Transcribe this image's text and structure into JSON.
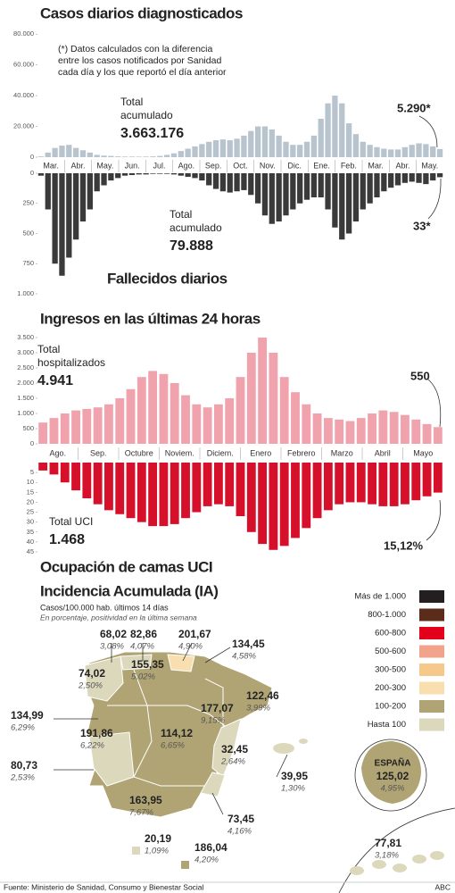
{
  "chart_data": [
    {
      "type": "bar",
      "title": "Casos diarios diagnosticados",
      "note": [
        "(*) Datos calculados con la diferencia",
        "entre los casos notificados por Sanidad",
        "cada día y los que reportó el día anterior"
      ],
      "total_label": [
        "Total",
        "acumulado"
      ],
      "total": "3.663.176",
      "x_labels": [
        "Mar.",
        "Abr.",
        "May.",
        "Jun.",
        "Jul.",
        "Ago.",
        "Sep.",
        "Oct.",
        "Nov.",
        "Dic.",
        "Ene.",
        "Feb.",
        "Mar.",
        "Abr.",
        "May."
      ],
      "values": [
        500,
        3000,
        6000,
        7500,
        8000,
        6000,
        4500,
        3000,
        1500,
        1000,
        800,
        500,
        400,
        400,
        350,
        400,
        500,
        800,
        1500,
        2500,
        4000,
        5500,
        7000,
        8500,
        10000,
        11000,
        11500,
        11000,
        12000,
        14000,
        17000,
        20000,
        20000,
        18000,
        14000,
        10000,
        8000,
        8000,
        10000,
        14000,
        25000,
        35000,
        40000,
        35000,
        22000,
        15000,
        10000,
        8000,
        6500,
        5500,
        5000,
        5000,
        6500,
        8000,
        9000,
        8500,
        7000,
        5290
      ],
      "value_labels": [
        null,
        null,
        null,
        null,
        null,
        null,
        null,
        null,
        null,
        null,
        null,
        null,
        null,
        null,
        null,
        null,
        null,
        null,
        null,
        null,
        null,
        null,
        null,
        null,
        null,
        null,
        null,
        null,
        null,
        null,
        null,
        null,
        null,
        null,
        null,
        null,
        null,
        null,
        null,
        null,
        null,
        null,
        null,
        null,
        null,
        null,
        null,
        null,
        null,
        null,
        null,
        null,
        null,
        null,
        null,
        null,
        null,
        "5.290*"
      ],
      "color": "#b7c3cd",
      "ylim": [
        0,
        90000
      ],
      "yticks": [
        0,
        {
          "value": 20000,
          "label": "20.000"
        },
        {
          "value": 40000,
          "label": "40.000"
        },
        {
          "value": 60000,
          "label": "60.000"
        },
        {
          "value": 80000,
          "label": "80.000"
        }
      ]
    },
    {
      "type": "bar",
      "title": "Fallecidos diarios",
      "y_inverted": true,
      "total_label": [
        "Total",
        "acumulado"
      ],
      "total": "79.888",
      "values": [
        20,
        300,
        750,
        850,
        700,
        550,
        400,
        300,
        150,
        100,
        60,
        40,
        20,
        15,
        10,
        10,
        5,
        5,
        5,
        10,
        20,
        30,
        40,
        60,
        100,
        130,
        150,
        160,
        150,
        140,
        180,
        250,
        350,
        420,
        400,
        350,
        300,
        250,
        220,
        200,
        200,
        300,
        450,
        550,
        500,
        400,
        300,
        250,
        200,
        150,
        120,
        100,
        80,
        70,
        80,
        90,
        60,
        33
      ],
      "value_labels": [
        null,
        null,
        null,
        null,
        null,
        null,
        null,
        null,
        null,
        null,
        null,
        null,
        null,
        null,
        null,
        null,
        null,
        null,
        null,
        null,
        null,
        null,
        null,
        null,
        null,
        null,
        null,
        null,
        null,
        null,
        null,
        null,
        null,
        null,
        null,
        null,
        null,
        null,
        null,
        null,
        null,
        null,
        null,
        null,
        null,
        null,
        null,
        null,
        null,
        null,
        null,
        null,
        null,
        null,
        null,
        null,
        null,
        "33*"
      ],
      "color": "#3a3a3a",
      "ylim": [
        0,
        1000
      ],
      "yticks": [
        0,
        250,
        500,
        750,
        {
          "value": 1000,
          "label": "1.000"
        }
      ]
    },
    {
      "type": "bar",
      "title": "Ingresos en las últimas 24 horas",
      "total_label": [
        "Total",
        "hospitalizados"
      ],
      "total": "4.941",
      "x_labels": [
        "Ago.",
        "Sep.",
        "Octubre",
        "Noviem.",
        "Diciem.",
        "Enero",
        "Febrero",
        "Marzo",
        "Abril",
        "Mayo"
      ],
      "values": [
        700,
        850,
        1000,
        1100,
        1150,
        1200,
        1300,
        1500,
        1800,
        2200,
        2400,
        2300,
        2000,
        1600,
        1300,
        1200,
        1300,
        1500,
        2200,
        3000,
        3500,
        3000,
        2200,
        1700,
        1300,
        1000,
        850,
        800,
        750,
        850,
        1000,
        1100,
        1050,
        950,
        800,
        650,
        550
      ],
      "color": "#f0a3ad",
      "ylim": [
        0,
        3750
      ],
      "yticks": [
        0,
        500,
        {
          "value": 1000,
          "label": "1.000"
        },
        {
          "value": 1500,
          "label": "1.500"
        },
        {
          "value": 2000,
          "label": "2.000"
        },
        {
          "value": 2500,
          "label": "2.500"
        },
        {
          "value": 3000,
          "label": "3.000"
        },
        {
          "value": 3500,
          "label": "3.500"
        }
      ]
    },
    {
      "type": "bar",
      "title": "Ocupación de camas UCI",
      "y_inverted": true,
      "total_label": [
        "Total UCI"
      ],
      "total": "1.468",
      "values": [
        4,
        6,
        10,
        14,
        18,
        21,
        24,
        26,
        28,
        30,
        32,
        32,
        31,
        28,
        25,
        22,
        21,
        22,
        27,
        35,
        41,
        44,
        42,
        38,
        33,
        28,
        24,
        21,
        20,
        20,
        21,
        22,
        22,
        21,
        19,
        17,
        15.12
      ],
      "value_labels": [
        null,
        null,
        null,
        null,
        null,
        null,
        null,
        null,
        null,
        null,
        null,
        null,
        null,
        null,
        null,
        null,
        null,
        null,
        null,
        null,
        null,
        null,
        null,
        null,
        null,
        null,
        null,
        null,
        null,
        null,
        null,
        null,
        null,
        null,
        null,
        null,
        "15,12%"
      ],
      "color": "#d6102b",
      "ylim": [
        0,
        45
      ],
      "yticks": [
        5,
        10,
        15,
        20,
        25,
        30,
        35,
        40,
        45
      ]
    }
  ],
  "map": {
    "title": "Incidencia Acumulada (IA)",
    "subtitle": "Casos/100.000 hab. últimos 14 días",
    "note": "En porcentaje, positividad en la última semana",
    "legend": [
      {
        "label": "Más de 1.000",
        "color": "#231f20"
      },
      {
        "label": "800-1.000",
        "color": "#5b2c1a"
      },
      {
        "label": "600-800",
        "color": "#e3001b"
      },
      {
        "label": "500-600",
        "color": "#f2a38c"
      },
      {
        "label": "300-500",
        "color": "#f6c88a"
      },
      {
        "label": "200-300",
        "color": "#f9deb0"
      },
      {
        "label": "100-200",
        "color": "#b0a474"
      },
      {
        "label": "Hasta 100",
        "color": "#dcd8bb"
      }
    ],
    "regions": [
      {
        "value": "68,02",
        "positivity": "3,08%",
        "color": "#dcd8bb"
      },
      {
        "value": "82,86",
        "positivity": "4,07%",
        "color": "#dcd8bb"
      },
      {
        "value": "201,67",
        "positivity": "4,90%",
        "color": "#f9deb0"
      },
      {
        "value": "134,45",
        "positivity": "4,58%",
        "color": "#b0a474"
      },
      {
        "value": "74,02",
        "positivity": "2,50%",
        "color": "#dcd8bb"
      },
      {
        "value": "155,35",
        "positivity": "5,02%",
        "color": "#b0a474"
      },
      {
        "value": "122,46",
        "positivity": "3,99%",
        "color": "#b0a474"
      },
      {
        "value": "177,07",
        "positivity": "9,15%",
        "color": "#b0a474"
      },
      {
        "value": "134,99",
        "positivity": "6,29%",
        "color": "#b0a474"
      },
      {
        "value": "191,86",
        "positivity": "6,22%",
        "color": "#b0a474"
      },
      {
        "value": "114,12",
        "positivity": "6,65%",
        "color": "#b0a474"
      },
      {
        "value": "32,45",
        "positivity": "2,64%",
        "color": "#dcd8bb"
      },
      {
        "value": "80,73",
        "positivity": "2,53%",
        "color": "#dcd8bb"
      },
      {
        "value": "39,95",
        "positivity": "1,30%",
        "color": "#dcd8bb"
      },
      {
        "value": "163,95",
        "positivity": "7,67%",
        "color": "#b0a474"
      },
      {
        "value": "73,45",
        "positivity": "4,16%",
        "color": "#dcd8bb"
      },
      {
        "value": "20,19",
        "positivity": "1,09%",
        "color": "#dcd8bb"
      },
      {
        "value": "186,04",
        "positivity": "4,20%",
        "color": "#b0a474"
      },
      {
        "value": "77,81",
        "positivity": "3,18%",
        "color": "#dcd8bb"
      }
    ],
    "spain": {
      "label": "ESPAÑA",
      "value": "125,02",
      "positivity": "4,95%",
      "color": "#b0a474"
    }
  },
  "footer": {
    "source": "Fuente: Ministerio de Sanidad, Consumo y Bienestar Social",
    "brand": "ABC"
  }
}
